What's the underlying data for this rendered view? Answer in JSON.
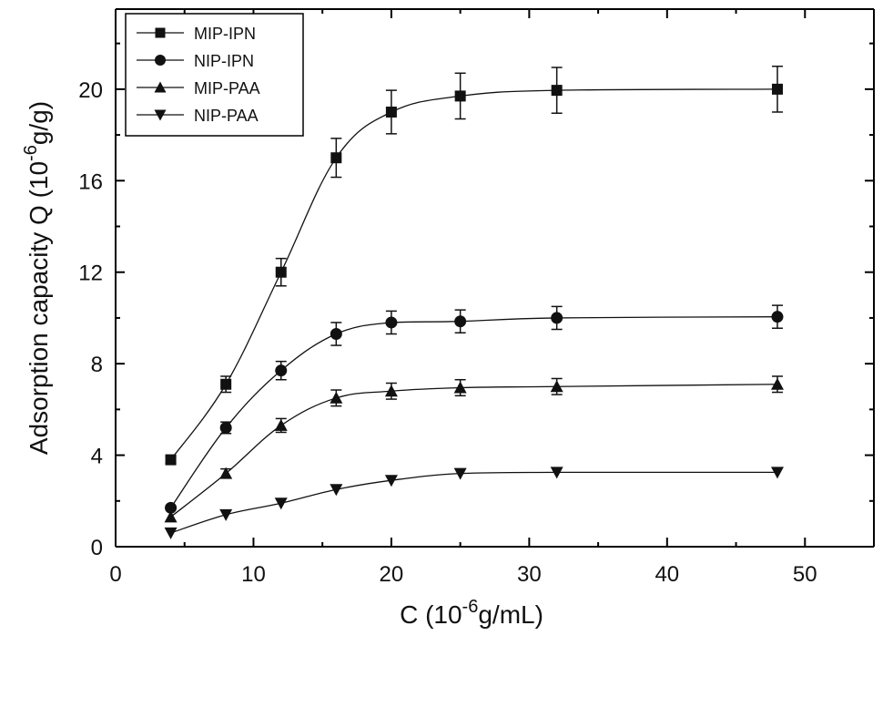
{
  "chart_data": {
    "type": "line",
    "xlabel": {
      "main": "C (10",
      "sup": "-6",
      "rest": "g/mL)"
    },
    "ylabel": {
      "main": "Adsorption capacity Q (10",
      "sup": "-6",
      "rest": "g/g)"
    },
    "xlim": [
      0,
      55
    ],
    "ylim": [
      0,
      23.5
    ],
    "xticks": [
      0,
      10,
      20,
      30,
      40,
      50
    ],
    "yticks": [
      0,
      4,
      8,
      12,
      16,
      20
    ],
    "grid": false,
    "legend_position": "top-left",
    "series": [
      {
        "name": "MIP-IPN",
        "marker": "square",
        "x": [
          4,
          8,
          12,
          16,
          20,
          25,
          32,
          48
        ],
        "y": [
          3.8,
          7.1,
          12.0,
          17.0,
          19.0,
          19.7,
          19.95,
          20.0
        ],
        "err": [
          0.15,
          0.35,
          0.6,
          0.85,
          0.95,
          1.0,
          1.0,
          1.0
        ]
      },
      {
        "name": "NIP-IPN",
        "marker": "circle",
        "x": [
          4,
          8,
          12,
          16,
          20,
          25,
          32,
          48
        ],
        "y": [
          1.7,
          5.2,
          7.7,
          9.3,
          9.8,
          9.85,
          10.0,
          10.05
        ],
        "err": [
          0.1,
          0.25,
          0.4,
          0.5,
          0.5,
          0.5,
          0.5,
          0.5
        ]
      },
      {
        "name": "MIP-PAA",
        "marker": "triangle-up",
        "x": [
          4,
          8,
          12,
          16,
          20,
          25,
          32,
          48
        ],
        "y": [
          1.3,
          3.2,
          5.3,
          6.5,
          6.8,
          6.95,
          7.0,
          7.1
        ],
        "err": [
          0.1,
          0.2,
          0.3,
          0.35,
          0.35,
          0.35,
          0.35,
          0.35
        ]
      },
      {
        "name": "NIP-PAA",
        "marker": "triangle-down",
        "x": [
          4,
          8,
          12,
          16,
          20,
          25,
          32,
          48
        ],
        "y": [
          0.6,
          1.4,
          1.9,
          2.5,
          2.9,
          3.2,
          3.25,
          3.25
        ],
        "err": [
          0.05,
          0.1,
          0.1,
          0.1,
          0.1,
          0.12,
          0.12,
          0.12
        ]
      }
    ]
  }
}
